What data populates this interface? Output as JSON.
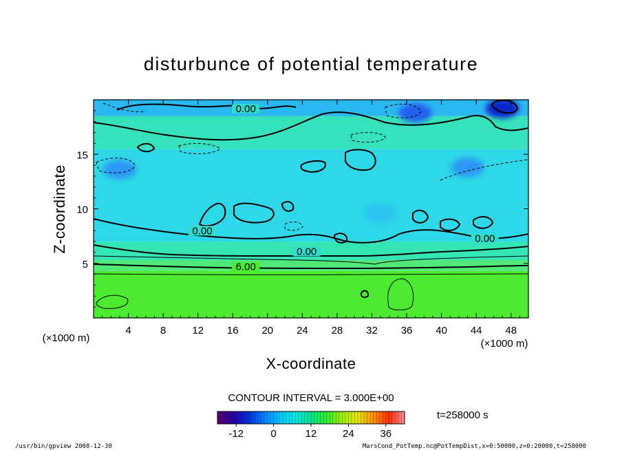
{
  "chart_data": {
    "type": "heatmap",
    "title": "disturbunce of potential temperature",
    "xlabel": "X-coordinate",
    "ylabel": "Z-coordinate",
    "x_unit": "(×1000 m)",
    "z_unit": "(×1000 m)",
    "xlim": [
      0,
      50
    ],
    "ylim": [
      0,
      20
    ],
    "x_ticks": [
      4,
      8,
      12,
      16,
      20,
      24,
      28,
      32,
      36,
      40,
      44,
      48
    ],
    "y_ticks": [
      5,
      10,
      15
    ],
    "contour_interval_text": "CONTOUR INTERVAL = 3.000E+00",
    "time_label": "t=258000 s",
    "colorbar": {
      "min": -18,
      "max": 42,
      "ticks": [
        -12,
        0,
        12,
        24,
        36
      ],
      "colors": [
        "#5a0070",
        "#2a00a8",
        "#0030e0",
        "#0080ff",
        "#00c8ff",
        "#00e8e0",
        "#00e890",
        "#30f030",
        "#a0f000",
        "#e8e800",
        "#ff9000",
        "#ff3000",
        "#ff90a0"
      ]
    },
    "contour_labels": [
      {
        "text": "0.00",
        "x": 17.5,
        "z": 19.0
      },
      {
        "text": "0.00",
        "x": 12.5,
        "z": 7.8
      },
      {
        "text": "0.00",
        "x": 24.5,
        "z": 5.9
      },
      {
        "text": "0.00",
        "x": 45.0,
        "z": 7.1
      },
      {
        "text": "6.00",
        "x": 17.5,
        "z": 4.5
      }
    ],
    "bands": [
      {
        "z_bottom": 0,
        "z_top": 4.3,
        "value": 9,
        "color": "#4cea30"
      },
      {
        "z_bottom": 4.3,
        "z_top": 5.3,
        "value": 6,
        "color": "#50e878"
      },
      {
        "z_bottom": 5.3,
        "z_top": 7.0,
        "value": 3,
        "color": "#34e6b4"
      },
      {
        "z_bottom": 7.0,
        "z_top": 15.5,
        "value": 0,
        "color": "#2ed8e8"
      },
      {
        "z_bottom": 15.5,
        "z_top": 18.5,
        "value": 2,
        "color": "#36e2bc"
      },
      {
        "z_bottom": 18.5,
        "z_top": 20,
        "value": -2,
        "color": "#2ab8f0"
      }
    ],
    "minima": [
      {
        "x": 47.0,
        "z": 19.2,
        "value": -12
      },
      {
        "x": 37.0,
        "z": 18.8,
        "value": -9
      },
      {
        "x": 3.0,
        "z": 13.6,
        "value": -6
      },
      {
        "x": 43.0,
        "z": 13.8,
        "value": -6
      },
      {
        "x": 33.0,
        "z": 9.6,
        "value": -3
      }
    ]
  },
  "footer": {
    "left": "/usr/bin/gpview  2008-12-30",
    "right": "MarsCond_PotTemp.nc@PotTempDist,x=0:50000,z=0:20000,t=258000"
  },
  "icons": {
    "time": "none"
  }
}
